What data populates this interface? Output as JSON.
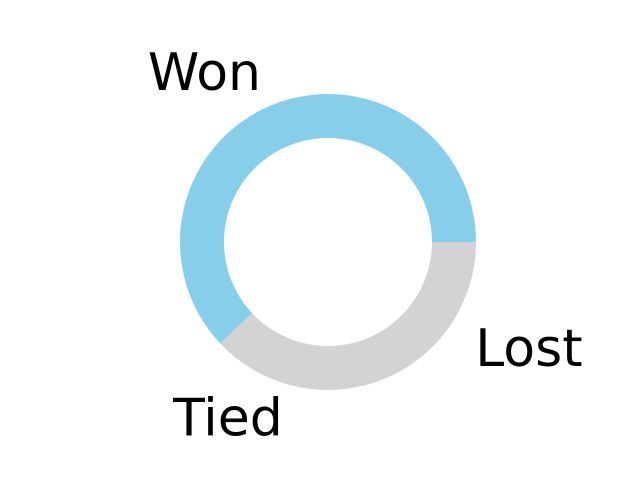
{
  "chart_data": {
    "type": "pie",
    "style": "donut",
    "categories": [
      "Won",
      "Tied",
      "Lost"
    ],
    "values": [
      62,
      18,
      20
    ],
    "colors": [
      "#87ceeb",
      "#d3d3d3",
      "#d3d3d3"
    ],
    "start_angle_deg": 0,
    "direction": "counterclockwise",
    "labels_outside": true,
    "legend": "none",
    "title": ""
  }
}
